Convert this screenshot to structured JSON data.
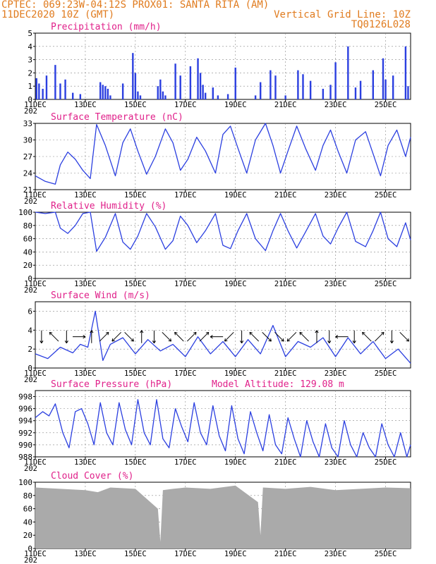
{
  "header": {
    "left1": "CPTEC:   069:23W-04:12S   PROX01: SANTA RITA (AM)",
    "left2": "11DEC2020 10Z (GMT)",
    "right2": "Vertical Grid Line: 10Z",
    "right3": "TQ0126L028"
  },
  "colors": {
    "header": "#e07b1e",
    "title": "#e0208a",
    "series": "#2b3fe0",
    "cloud": "#aaaaaa",
    "grid": "#888888"
  },
  "x_labels": [
    "11DEC",
    "13DEC",
    "15DEC",
    "17DEC",
    "19DEC",
    "21DEC",
    "23DEC",
    "25DEC"
  ],
  "year_fragment": "202",
  "chart_data": [
    {
      "type": "bar",
      "title": "Precipitation (mm/h)",
      "ylim": [
        0,
        5
      ],
      "yticks": [
        "0",
        "1",
        "2",
        "3",
        "4",
        "5"
      ],
      "x_unit": "days since 11DEC 10Z",
      "x": [
        0.05,
        0.15,
        0.3,
        0.45,
        0.8,
        1.0,
        1.2,
        1.5,
        1.8,
        2.6,
        2.7,
        2.8,
        2.9,
        3.0,
        3.5,
        3.9,
        4.0,
        4.1,
        4.2,
        4.9,
        5.0,
        5.1,
        5.2,
        5.6,
        5.8,
        6.2,
        6.5,
        6.6,
        6.7,
        6.8,
        7.1,
        7.3,
        7.7,
        8.0,
        8.8,
        9.0,
        9.4,
        9.6,
        10.0,
        10.5,
        10.7,
        11.0,
        11.5,
        11.8,
        12.0,
        12.5,
        12.8,
        13.0,
        13.5,
        13.9,
        14.0,
        14.3,
        14.8,
        14.9
      ],
      "values": [
        1.6,
        1.2,
        0.8,
        1.8,
        2.6,
        1.2,
        1.5,
        0.5,
        0.4,
        1.3,
        1.1,
        1.0,
        0.8,
        0.3,
        1.2,
        3.5,
        2.0,
        0.6,
        0.3,
        1.0,
        1.5,
        0.6,
        0.3,
        2.7,
        1.8,
        2.5,
        3.1,
        2.0,
        1.1,
        0.5,
        0.9,
        0.3,
        0.4,
        2.4,
        0.3,
        1.3,
        2.2,
        1.8,
        0.3,
        2.2,
        1.9,
        1.4,
        0.8,
        1.1,
        2.8,
        4.0,
        0.9,
        1.4,
        2.2,
        3.1,
        1.5,
        1.8,
        4.0,
        1.0
      ]
    },
    {
      "type": "line",
      "title": "Surface Temperature (nC)",
      "ylim": [
        21,
        33
      ],
      "yticks": [
        "21",
        "24",
        "27",
        "30",
        "33"
      ],
      "x_unit": "days since 11DEC 10Z",
      "x": [
        0.0,
        0.4,
        0.8,
        1.0,
        1.3,
        1.6,
        1.9,
        2.2,
        2.45,
        2.8,
        3.2,
        3.5,
        3.8,
        4.1,
        4.45,
        4.8,
        5.2,
        5.5,
        5.8,
        6.1,
        6.45,
        6.8,
        7.2,
        7.5,
        7.8,
        8.1,
        8.45,
        8.8,
        9.2,
        9.5,
        9.8,
        10.1,
        10.45,
        10.8,
        11.2,
        11.5,
        11.8,
        12.1,
        12.45,
        12.8,
        13.2,
        13.5,
        13.8,
        14.1,
        14.45,
        14.8,
        15.0
      ],
      "values": [
        23.5,
        22.5,
        22.0,
        25.5,
        27.8,
        26.5,
        24.5,
        23.0,
        32.8,
        29.0,
        23.5,
        29.5,
        32.0,
        28.0,
        23.8,
        27.0,
        32.0,
        29.5,
        24.5,
        26.5,
        30.5,
        28.0,
        24.0,
        31.0,
        32.5,
        28.5,
        24.0,
        30.0,
        33.5,
        29.0,
        24.0,
        28.0,
        32.5,
        28.5,
        24.5,
        29.0,
        31.8,
        28.0,
        24.0,
        30.0,
        31.5,
        27.5,
        23.5,
        29.0,
        31.8,
        27.0,
        30.5
      ]
    },
    {
      "type": "line",
      "title": "Relative Humidity (%)",
      "ylim": [
        0,
        100
      ],
      "yticks": [
        "0",
        "20",
        "40",
        "60",
        "80",
        "100"
      ],
      "x_unit": "days since 11DEC 10Z",
      "x": [
        0.0,
        0.4,
        0.8,
        1.0,
        1.3,
        1.6,
        1.9,
        2.2,
        2.45,
        2.8,
        3.2,
        3.5,
        3.8,
        4.1,
        4.45,
        4.8,
        5.2,
        5.5,
        5.8,
        6.1,
        6.45,
        6.8,
        7.2,
        7.5,
        7.8,
        8.1,
        8.45,
        8.8,
        9.2,
        9.5,
        9.8,
        10.1,
        10.45,
        10.8,
        11.2,
        11.5,
        11.8,
        12.1,
        12.45,
        12.8,
        13.2,
        13.5,
        13.8,
        14.1,
        14.45,
        14.8,
        15.0
      ],
      "values": [
        100,
        98,
        100,
        76,
        68,
        80,
        98,
        100,
        41,
        62,
        98,
        55,
        44,
        64,
        98,
        78,
        44,
        57,
        94,
        80,
        54,
        72,
        98,
        50,
        45,
        72,
        98,
        60,
        42,
        72,
        98,
        72,
        46,
        70,
        98,
        64,
        52,
        76,
        100,
        56,
        48,
        72,
        100,
        60,
        48,
        84,
        58
      ]
    },
    {
      "type": "line",
      "title": "Surface Wind (m/s)",
      "ylim": [
        0,
        7
      ],
      "yticks": [
        "0",
        "2",
        "4",
        "6"
      ],
      "x_unit": "days since 11DEC 10Z",
      "x": [
        0.0,
        0.5,
        1.0,
        1.5,
        1.8,
        2.1,
        2.4,
        2.7,
        3.0,
        3.5,
        4.0,
        4.5,
        5.0,
        5.5,
        6.0,
        6.5,
        7.0,
        7.5,
        8.0,
        8.5,
        9.0,
        9.5,
        10.0,
        10.5,
        11.0,
        11.5,
        12.0,
        12.5,
        13.0,
        13.5,
        14.0,
        14.5,
        15.0
      ],
      "values": [
        1.5,
        1.0,
        2.2,
        1.6,
        2.5,
        2.2,
        6.0,
        0.8,
        2.5,
        3.2,
        1.5,
        3.0,
        1.8,
        2.5,
        1.2,
        3.3,
        1.5,
        2.8,
        1.2,
        3.0,
        1.5,
        4.5,
        1.2,
        2.8,
        2.2,
        3.2,
        1.2,
        3.2,
        1.5,
        2.8,
        1.0,
        2.0,
        0.5
      ],
      "arrow_dirs_deg": [
        90,
        225,
        90,
        0,
        270,
        315,
        135,
        45,
        270,
        90,
        45,
        225,
        315,
        315,
        180,
        135,
        90,
        225,
        45,
        45,
        135,
        225,
        270,
        90,
        180,
        90,
        225,
        315,
        90,
        45
      ]
    },
    {
      "type": "line",
      "title": "Surface Pressure (hPa)",
      "annotation": "Model Altitude: 129.08  m",
      "ylim": [
        988,
        999
      ],
      "yticks": [
        "988",
        "990",
        "992",
        "994",
        "996",
        "998"
      ],
      "x_unit": "days since 11DEC 10Z",
      "x": [
        0.0,
        0.3,
        0.55,
        0.8,
        1.1,
        1.35,
        1.6,
        1.85,
        2.1,
        2.35,
        2.6,
        2.85,
        3.1,
        3.35,
        3.6,
        3.85,
        4.1,
        4.35,
        4.6,
        4.85,
        5.1,
        5.35,
        5.6,
        5.85,
        6.1,
        6.35,
        6.6,
        6.85,
        7.1,
        7.35,
        7.6,
        7.85,
        8.1,
        8.35,
        8.6,
        8.85,
        9.1,
        9.35,
        9.6,
        9.85,
        10.1,
        10.35,
        10.6,
        10.85,
        11.1,
        11.35,
        11.6,
        11.85,
        12.1,
        12.35,
        12.6,
        12.85,
        13.1,
        13.35,
        13.6,
        13.85,
        14.1,
        14.35,
        14.6,
        14.85,
        15.0
      ],
      "values": [
        994.5,
        995.5,
        994.8,
        996.8,
        992.0,
        989.5,
        995.5,
        996.0,
        993.5,
        990.0,
        997.0,
        992.0,
        990.0,
        997.0,
        992.5,
        990.0,
        997.5,
        992.0,
        990.0,
        997.5,
        991.0,
        989.5,
        996.0,
        993.0,
        990.5,
        997.0,
        992.0,
        990.0,
        996.5,
        991.5,
        989.0,
        996.5,
        991.0,
        988.5,
        995.5,
        992.0,
        989.0,
        995.0,
        990.0,
        988.5,
        994.5,
        991.0,
        988.0,
        994.0,
        990.5,
        988.0,
        993.5,
        989.5,
        988.0,
        994.0,
        990.0,
        988.0,
        992.0,
        989.5,
        988.0,
        993.5,
        990.0,
        988.0,
        992.0,
        988.0,
        990.0
      ]
    },
    {
      "type": "area",
      "title": "Cloud Cover (%)",
      "ylim": [
        0,
        100
      ],
      "yticks": [
        "0",
        "20",
        "40",
        "60",
        "80",
        "100"
      ],
      "x_unit": "days since 11DEC 10Z",
      "x": [
        0.0,
        1.0,
        2.0,
        2.5,
        3.0,
        4.0,
        4.9,
        5.0,
        5.1,
        5.5,
        6.0,
        7.0,
        8.0,
        8.9,
        9.0,
        9.1,
        10.0,
        11.0,
        12.0,
        13.0,
        14.0,
        15.0
      ],
      "values": [
        92,
        90,
        88,
        85,
        92,
        90,
        60,
        10,
        88,
        90,
        92,
        90,
        95,
        70,
        20,
        92,
        90,
        93,
        88,
        90,
        92,
        91
      ]
    }
  ]
}
